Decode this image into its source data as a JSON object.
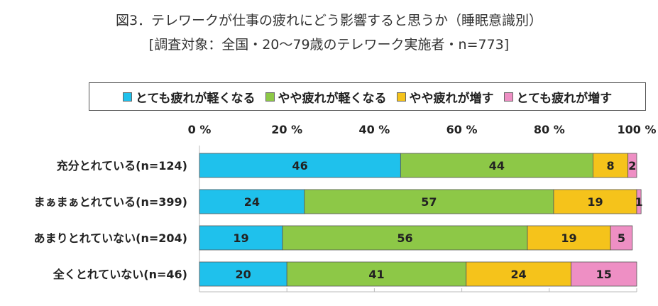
{
  "title": "図3．テレワークが仕事の疲れにどう影響すると思うか（睡眠意識別）",
  "subtitle": "[調査対象：全国・20～79歳のテレワーク実施者・n=773]",
  "chart_data": {
    "type": "bar",
    "orientation": "horizontal",
    "stacked": true,
    "percent_stacked": true,
    "categories": [
      "充分とれている(n=124)",
      "まぁまぁとれている(n=399)",
      "あまりとれていない(n=204)",
      "全くとれていない(n=46)"
    ],
    "series": [
      {
        "name": "とても疲れが軽くなる",
        "color": "#1fc1ec",
        "values": [
          46,
          24,
          19,
          20
        ]
      },
      {
        "name": "やや疲れが軽くなる",
        "color": "#8dc847",
        "values": [
          44,
          57,
          56,
          41
        ]
      },
      {
        "name": "やや疲れが増す",
        "color": "#f5c31b",
        "values": [
          8,
          19,
          19,
          24
        ]
      },
      {
        "name": "とても疲れが増す",
        "color": "#ee8fc4",
        "values": [
          2,
          1,
          5,
          15
        ]
      }
    ],
    "xlim": [
      0,
      100
    ],
    "xticks": [
      "0 %",
      "20 %",
      "40 %",
      "60 %",
      "80 %",
      "100 %"
    ],
    "legend_position": "top",
    "grid": false
  }
}
